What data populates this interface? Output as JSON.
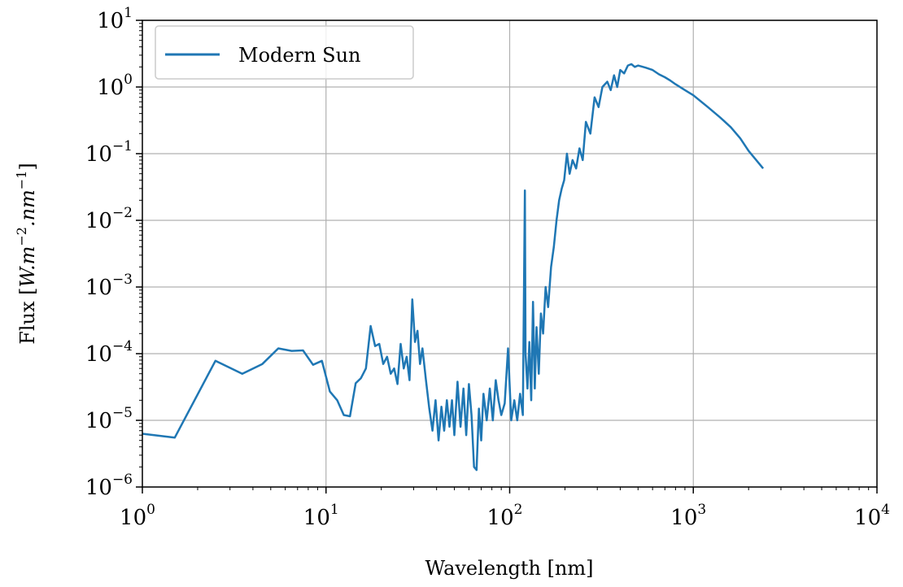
{
  "chart_data": {
    "type": "line",
    "xlabel": "Wavelength [nm]",
    "ylabel_prefix": "Flux [",
    "ylabel_math": "W.m",
    "ylabel_exp1": "−2",
    "ylabel_mid": ".nm",
    "ylabel_exp2": "−1",
    "ylabel_suffix": "]",
    "x_scale": "log",
    "y_scale": "log",
    "xlim": [
      1,
      10000
    ],
    "ylim": [
      1e-06,
      10
    ],
    "grid": true,
    "legend_position": "top-left",
    "x_ticks": [
      {
        "value": 1,
        "base": "10",
        "exp": "0"
      },
      {
        "value": 10,
        "base": "10",
        "exp": "1"
      },
      {
        "value": 100,
        "base": "10",
        "exp": "2"
      },
      {
        "value": 1000,
        "base": "10",
        "exp": "3"
      },
      {
        "value": 10000,
        "base": "10",
        "exp": "4"
      }
    ],
    "y_ticks": [
      {
        "value": 10,
        "base": "10",
        "exp": "1"
      },
      {
        "value": 1,
        "base": "10",
        "exp": "0"
      },
      {
        "value": 0.1,
        "base": "10",
        "exp": "−1"
      },
      {
        "value": 0.01,
        "base": "10",
        "exp": "−2"
      },
      {
        "value": 0.001,
        "base": "10",
        "exp": "−3"
      },
      {
        "value": 0.0001,
        "base": "10",
        "exp": "−4"
      },
      {
        "value": 1e-05,
        "base": "10",
        "exp": "−5"
      },
      {
        "value": 1e-06,
        "base": "10",
        "exp": "−6"
      }
    ],
    "series": [
      {
        "name": "Modern Sun",
        "color": "#1f77b4",
        "points": [
          [
            1.0,
            6.3e-06
          ],
          [
            1.5,
            5.5e-06
          ],
          [
            2.5,
            7.8e-05
          ],
          [
            3.5,
            5e-05
          ],
          [
            4.5,
            7e-05
          ],
          [
            5.5,
            0.00012
          ],
          [
            6.5,
            0.00011
          ],
          [
            7.5,
            0.000112
          ],
          [
            8.5,
            6.8e-05
          ],
          [
            9.5,
            7.8e-05
          ],
          [
            10.5,
            2.7e-05
          ],
          [
            11.5,
            2e-05
          ],
          [
            12.5,
            1.2e-05
          ],
          [
            13.5,
            1.15e-05
          ],
          [
            14.5,
            3.6e-05
          ],
          [
            15.5,
            4.3e-05
          ],
          [
            16.5,
            6e-05
          ],
          [
            17.5,
            0.00026
          ],
          [
            18.5,
            0.00013
          ],
          [
            19.5,
            0.00014
          ],
          [
            20.5,
            7e-05
          ],
          [
            21.5,
            9e-05
          ],
          [
            22.5,
            5e-05
          ],
          [
            23.5,
            6e-05
          ],
          [
            24.5,
            3.5e-05
          ],
          [
            25.5,
            0.00014
          ],
          [
            26.5,
            6e-05
          ],
          [
            27.5,
            9e-05
          ],
          [
            28.5,
            4e-05
          ],
          [
            29.5,
            0.00065
          ],
          [
            30.5,
            0.00015
          ],
          [
            31.5,
            0.00022
          ],
          [
            32.5,
            7e-05
          ],
          [
            33.5,
            0.00012
          ],
          [
            35.0,
            4e-05
          ],
          [
            36.5,
            1.5e-05
          ],
          [
            38.0,
            7e-06
          ],
          [
            39.5,
            2e-05
          ],
          [
            41.0,
            5e-06
          ],
          [
            42.5,
            1.6e-05
          ],
          [
            44.0,
            7e-06
          ],
          [
            45.5,
            2e-05
          ],
          [
            47.0,
            8e-06
          ],
          [
            48.5,
            2e-05
          ],
          [
            50.0,
            6e-06
          ],
          [
            52.0,
            3.8e-05
          ],
          [
            54.0,
            8e-06
          ],
          [
            56.0,
            3e-05
          ],
          [
            58.0,
            6e-06
          ],
          [
            60.0,
            3.5e-05
          ],
          [
            62.0,
            1.2e-05
          ],
          [
            64.0,
            2e-06
          ],
          [
            66.0,
            1.8e-06
          ],
          [
            68.0,
            1.5e-05
          ],
          [
            70.0,
            5e-06
          ],
          [
            72.0,
            2.5e-05
          ],
          [
            75.0,
            1e-05
          ],
          [
            78.0,
            3e-05
          ],
          [
            81.0,
            1e-05
          ],
          [
            84.0,
            4e-05
          ],
          [
            87.0,
            2e-05
          ],
          [
            90.0,
            1.2e-05
          ],
          [
            94.0,
            1.8e-05
          ],
          [
            98.0,
            0.00012
          ],
          [
            102.0,
            1e-05
          ],
          [
            106.0,
            2e-05
          ],
          [
            110.0,
            1e-05
          ],
          [
            114.0,
            2.5e-05
          ],
          [
            118.0,
            1.2e-05
          ],
          [
            121.0,
            0.028
          ],
          [
            122.0,
            0.0001
          ],
          [
            125.0,
            3e-05
          ],
          [
            128.0,
            0.00015
          ],
          [
            131.0,
            2e-05
          ],
          [
            134.0,
            0.0006
          ],
          [
            137.0,
            3e-05
          ],
          [
            140.0,
            0.00025
          ],
          [
            144.0,
            5e-05
          ],
          [
            148.0,
            0.0004
          ],
          [
            152.0,
            0.0002
          ],
          [
            157.0,
            0.001
          ],
          [
            162.0,
            0.0005
          ],
          [
            168.0,
            0.002
          ],
          [
            174.0,
            0.004
          ],
          [
            180.0,
            0.01
          ],
          [
            186.0,
            0.02
          ],
          [
            192.0,
            0.03
          ],
          [
            198.0,
            0.04
          ],
          [
            205.0,
            0.1
          ],
          [
            212.0,
            0.05
          ],
          [
            220.0,
            0.08
          ],
          [
            230.0,
            0.06
          ],
          [
            240.0,
            0.12
          ],
          [
            250.0,
            0.08
          ],
          [
            260.0,
            0.3
          ],
          [
            275.0,
            0.2
          ],
          [
            290.0,
            0.7
          ],
          [
            305.0,
            0.5
          ],
          [
            320.0,
            1.0
          ],
          [
            340.0,
            1.2
          ],
          [
            355.0,
            0.9
          ],
          [
            370.0,
            1.5
          ],
          [
            385.0,
            1.0
          ],
          [
            400.0,
            1.8
          ],
          [
            420.0,
            1.6
          ],
          [
            440.0,
            2.1
          ],
          [
            460.0,
            2.2
          ],
          [
            480.0,
            2.0
          ],
          [
            500.0,
            2.1
          ],
          [
            550.0,
            1.95
          ],
          [
            600.0,
            1.8
          ],
          [
            650.0,
            1.55
          ],
          [
            700.0,
            1.4
          ],
          [
            750.0,
            1.25
          ],
          [
            800.0,
            1.1
          ],
          [
            900.0,
            0.9
          ],
          [
            1000.0,
            0.75
          ],
          [
            1200.0,
            0.5
          ],
          [
            1400.0,
            0.35
          ],
          [
            1600.0,
            0.25
          ],
          [
            1800.0,
            0.17
          ],
          [
            2000.0,
            0.11
          ],
          [
            2200.0,
            0.08
          ],
          [
            2400.0,
            0.06
          ]
        ]
      }
    ]
  }
}
